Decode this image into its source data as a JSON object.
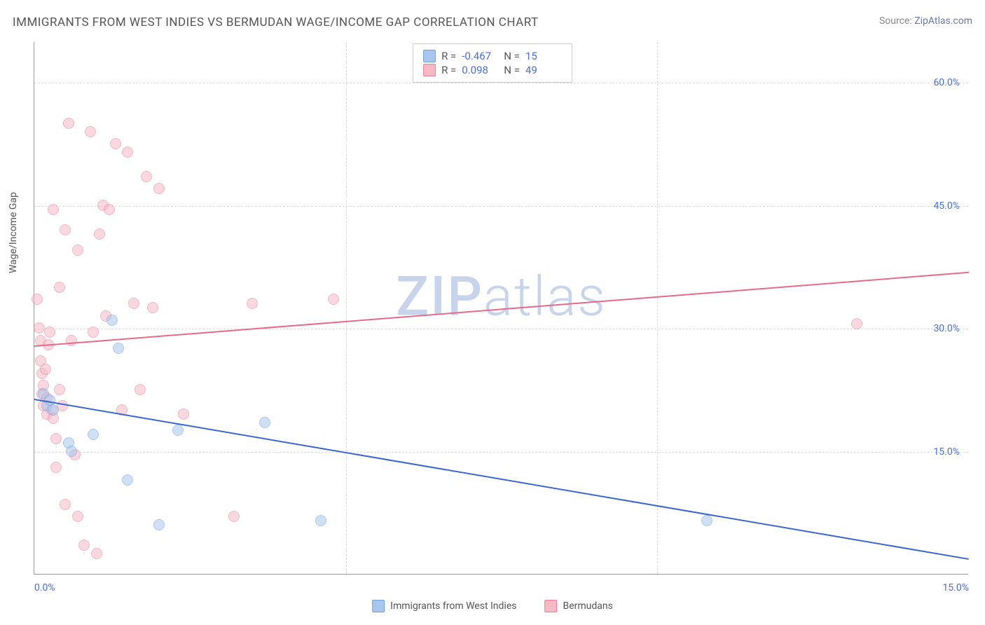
{
  "title": "IMMIGRANTS FROM WEST INDIES VS BERMUDAN WAGE/INCOME GAP CORRELATION CHART",
  "source_label": "Source: ",
  "source_link": "ZipAtlas.com",
  "y_axis_title": "Wage/Income Gap",
  "watermark_bold": "ZIP",
  "watermark_light": "atlas",
  "chart": {
    "type": "scatter",
    "xlim": [
      0,
      15
    ],
    "ylim": [
      0,
      65
    ],
    "x_ticks": [
      {
        "value": 0,
        "label": "0.0%",
        "align": "left"
      },
      {
        "value": 15,
        "label": "15.0%",
        "align": "right"
      }
    ],
    "y_ticks": [
      {
        "value": 15,
        "label": "15.0%"
      },
      {
        "value": 30,
        "label": "30.0%"
      },
      {
        "value": 45,
        "label": "45.0%"
      },
      {
        "value": 60,
        "label": "60.0%"
      }
    ],
    "x_gridlines": [
      5,
      10
    ],
    "background_color": "#ffffff",
    "grid_color": "#dddddd",
    "axis_color": "#999999",
    "tick_label_color": "#4a6fd8",
    "point_radius": 8,
    "point_opacity": 0.55,
    "line_width": 2,
    "series": [
      {
        "name": "Immigrants from West Indies",
        "fill": "#a9c7ee",
        "stroke": "#6fa0de",
        "line_color": "#3b66d1",
        "r_label": "R =",
        "r_value": "-0.467",
        "n_label": "N =",
        "n_value": "15",
        "trend": {
          "x1": 0,
          "y1": 21.5,
          "x2": 15,
          "y2": 2.0
        },
        "points": [
          [
            0.15,
            22.0
          ],
          [
            0.2,
            20.5
          ],
          [
            0.25,
            21.2
          ],
          [
            0.3,
            20.0
          ],
          [
            0.55,
            16.0
          ],
          [
            0.6,
            15.0
          ],
          [
            0.95,
            17.0
          ],
          [
            1.25,
            31.0
          ],
          [
            1.35,
            27.5
          ],
          [
            1.5,
            11.5
          ],
          [
            2.0,
            6.0
          ],
          [
            2.3,
            17.5
          ],
          [
            3.7,
            18.5
          ],
          [
            4.6,
            6.5
          ],
          [
            10.8,
            6.5
          ]
        ]
      },
      {
        "name": "Bermudans",
        "fill": "#f5b9c6",
        "stroke": "#e87f9b",
        "line_color": "#e56b8a",
        "r_label": "R =",
        "r_value": "0.098",
        "n_label": "N =",
        "n_value": "49",
        "trend": {
          "x1": 0,
          "y1": 28.0,
          "x2": 15,
          "y2": 37.0
        },
        "points": [
          [
            0.05,
            33.5
          ],
          [
            0.08,
            30.0
          ],
          [
            0.1,
            28.5
          ],
          [
            0.1,
            26.0
          ],
          [
            0.12,
            24.5
          ],
          [
            0.12,
            22.0
          ],
          [
            0.15,
            23.0
          ],
          [
            0.15,
            20.5
          ],
          [
            0.18,
            25.0
          ],
          [
            0.2,
            19.5
          ],
          [
            0.2,
            21.5
          ],
          [
            0.22,
            28.0
          ],
          [
            0.25,
            29.5
          ],
          [
            0.28,
            20.0
          ],
          [
            0.3,
            19.0
          ],
          [
            0.3,
            44.5
          ],
          [
            0.35,
            16.5
          ],
          [
            0.35,
            13.0
          ],
          [
            0.4,
            22.5
          ],
          [
            0.4,
            35.0
          ],
          [
            0.45,
            20.5
          ],
          [
            0.5,
            42.0
          ],
          [
            0.5,
            8.5
          ],
          [
            0.55,
            55.0
          ],
          [
            0.6,
            28.5
          ],
          [
            0.65,
            14.5
          ],
          [
            0.7,
            39.5
          ],
          [
            0.7,
            7.0
          ],
          [
            0.8,
            3.5
          ],
          [
            0.9,
            54.0
          ],
          [
            0.95,
            29.5
          ],
          [
            1.0,
            2.5
          ],
          [
            1.05,
            41.5
          ],
          [
            1.1,
            45.0
          ],
          [
            1.15,
            31.5
          ],
          [
            1.2,
            44.5
          ],
          [
            1.3,
            52.5
          ],
          [
            1.4,
            20.0
          ],
          [
            1.5,
            51.5
          ],
          [
            1.6,
            33.0
          ],
          [
            1.7,
            22.5
          ],
          [
            1.8,
            48.5
          ],
          [
            1.9,
            32.5
          ],
          [
            2.0,
            47.0
          ],
          [
            2.4,
            19.5
          ],
          [
            3.2,
            7.0
          ],
          [
            3.5,
            33.0
          ],
          [
            4.8,
            33.5
          ],
          [
            13.2,
            30.5
          ]
        ]
      }
    ]
  },
  "bottom_legend": [
    {
      "label": "Immigrants from West Indies",
      "fill": "#a9c7ee",
      "stroke": "#6fa0de"
    },
    {
      "label": "Bermudans",
      "fill": "#f5b9c6",
      "stroke": "#e87f9b"
    }
  ]
}
